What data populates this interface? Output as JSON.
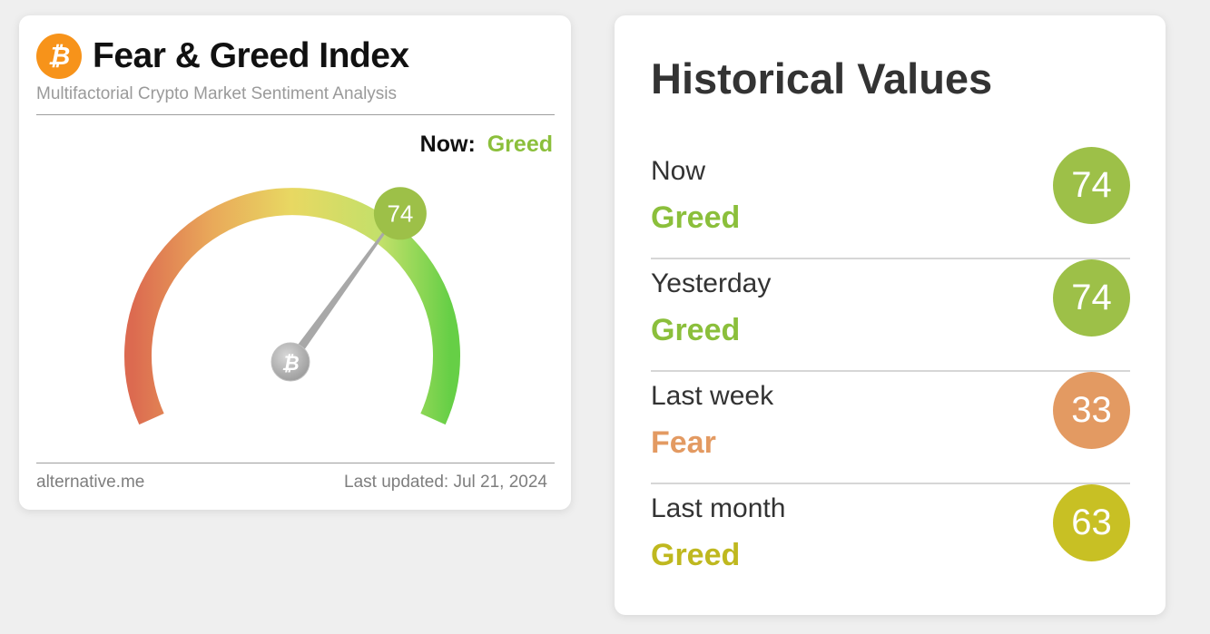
{
  "fear_greed": {
    "title": "Fear & Greed Index",
    "subtitle": "Multifactorial Crypto Market Sentiment Analysis",
    "logo_icon": "bitcoin-icon",
    "now_label": "Now:",
    "now_value": "Greed",
    "gauge_value": 74,
    "gauge_min": 0,
    "gauge_max": 100,
    "gauge_value_text": "74",
    "footer_source": "alternative.me",
    "footer_updated": "Last updated: Jul 21, 2024"
  },
  "historical": {
    "title": "Historical Values",
    "rows": [
      {
        "period": "Now",
        "label": "Greed",
        "value": "74",
        "color": "#9dc048",
        "label_color": "#8bbf3b"
      },
      {
        "period": "Yesterday",
        "label": "Greed",
        "value": "74",
        "color": "#9dc048",
        "label_color": "#8bbf3b"
      },
      {
        "period": "Last week",
        "label": "Fear",
        "value": "33",
        "color": "#e39a62",
        "label_color": "#e39a62"
      },
      {
        "period": "Last month",
        "label": "Greed",
        "value": "63",
        "color": "#c8c024",
        "label_color": "#bfb81f"
      }
    ]
  }
}
